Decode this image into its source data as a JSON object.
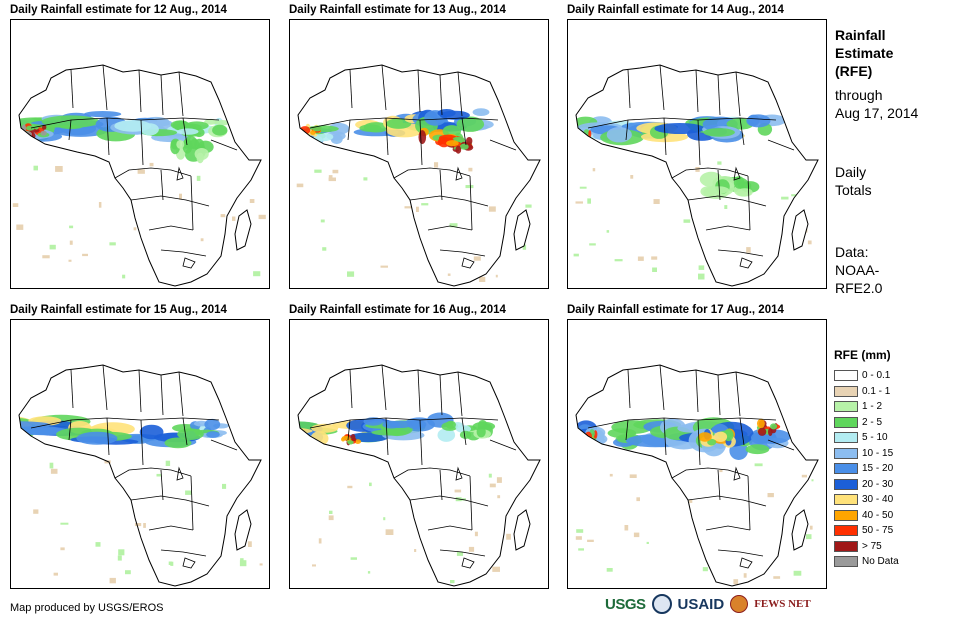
{
  "panels": [
    {
      "title": "Daily Rainfall estimate for 12 Aug., 2014"
    },
    {
      "title": "Daily Rainfall estimate for 13 Aug., 2014"
    },
    {
      "title": "Daily Rainfall estimate for 14 Aug., 2014"
    },
    {
      "title": "Daily Rainfall estimate for 15 Aug., 2014"
    },
    {
      "title": "Daily Rainfall estimate for 16 Aug., 2014"
    },
    {
      "title": "Daily Rainfall estimate for 17 Aug., 2014"
    }
  ],
  "sidebar": {
    "title_lines": [
      "Rainfall",
      "Estimate",
      "(RFE)"
    ],
    "through_lines": [
      "through",
      "Aug 17, 2014"
    ],
    "totals_lines": [
      "Daily",
      "Totals"
    ],
    "data_lines": [
      "Data:",
      "NOAA-",
      "RFE2.0"
    ]
  },
  "legend": {
    "title": "RFE (mm)",
    "items": [
      {
        "label": "0 - 0.1",
        "color": "#ffffff"
      },
      {
        "label": "0.1 - 1",
        "color": "#e8d3b4"
      },
      {
        "label": "1 - 2",
        "color": "#b7f2a8"
      },
      {
        "label": "2 - 5",
        "color": "#5fd65c"
      },
      {
        "label": "5 - 10",
        "color": "#b3ecf2"
      },
      {
        "label": "10 - 15",
        "color": "#8cbdf0"
      },
      {
        "label": "15 - 20",
        "color": "#4a8fe8"
      },
      {
        "label": "20 - 30",
        "color": "#1c5fd8"
      },
      {
        "label": "30 - 40",
        "color": "#ffe27a"
      },
      {
        "label": "40 - 50",
        "color": "#ffa500"
      },
      {
        "label": "50 - 75",
        "color": "#ff3000"
      },
      {
        "label": "> 75",
        "color": "#a01818"
      },
      {
        "label": "No Data",
        "color": "#9a9a9a"
      }
    ]
  },
  "footer": {
    "credit": "Map produced by USGS/EROS"
  },
  "logos": {
    "usgs": "USGS",
    "usaid": "USAID",
    "fewsnet": "FEWS NET"
  }
}
